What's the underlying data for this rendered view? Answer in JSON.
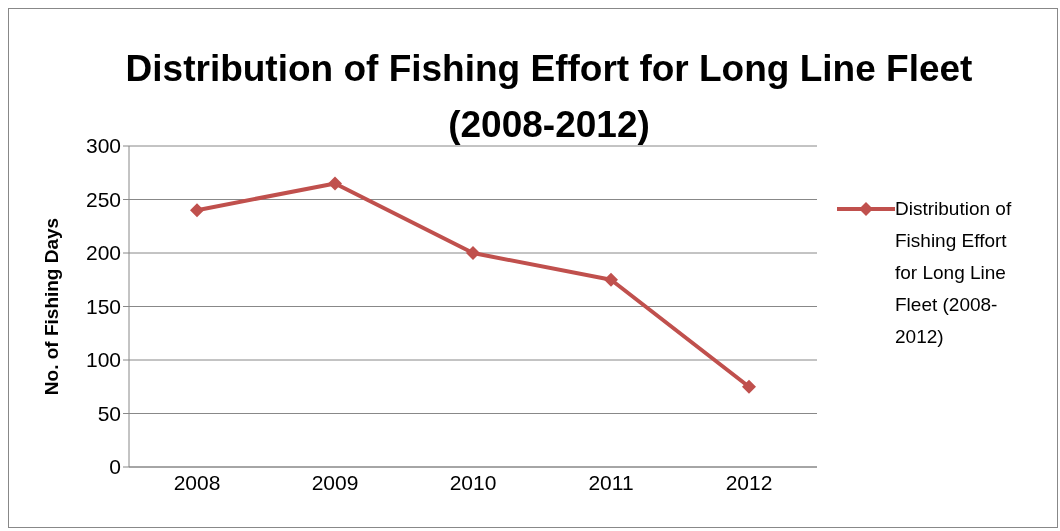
{
  "chart_data": {
    "type": "line",
    "title": "Distribution of Fishing Effort for Long Line Fleet (2008-2012)",
    "ylabel": "No. of Fishing Days",
    "categories": [
      "2008",
      "2009",
      "2010",
      "2011",
      "2012"
    ],
    "series": [
      {
        "name": "Distribution of Fishing Effort for Long Line Fleet (2008-2012)",
        "color": "#c0504d",
        "values": [
          240,
          265,
          200,
          175,
          75
        ]
      }
    ],
    "ylim": [
      0,
      300
    ],
    "yticks": [
      0,
      50,
      100,
      150,
      200,
      250,
      300
    ],
    "grid": "y",
    "legend": "right",
    "marker": "diamond",
    "line_style": "solid"
  }
}
